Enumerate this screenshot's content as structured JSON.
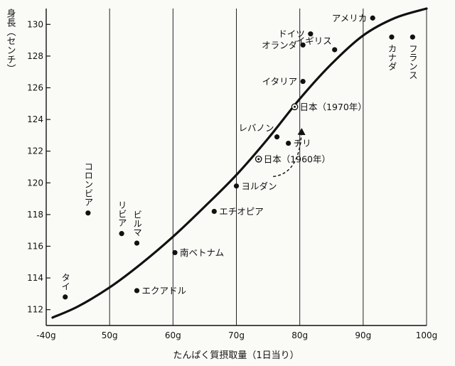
{
  "chart_data": {
    "type": "scatter",
    "xlabel": "たんぱく質摂取量（1日当り）",
    "ylabel": "身長（センチ）",
    "xlim": [
      40,
      100
    ],
    "ylim": [
      111,
      131
    ],
    "x_ticks": [
      {
        "value": 40,
        "label": "-40g"
      },
      {
        "value": 50,
        "label": "50g"
      },
      {
        "value": 60,
        "label": "60g"
      },
      {
        "value": 70,
        "label": "70g"
      },
      {
        "value": 80,
        "label": "80g"
      },
      {
        "value": 90,
        "label": "90g"
      },
      {
        "value": 100,
        "label": "100g"
      }
    ],
    "y_ticks": [
      {
        "value": 112,
        "label": "112"
      },
      {
        "value": 114,
        "label": "114"
      },
      {
        "value": 116,
        "label": "116"
      },
      {
        "value": 118,
        "label": "118"
      },
      {
        "value": 120,
        "label": "120"
      },
      {
        "value": 122,
        "label": "122"
      },
      {
        "value": 124,
        "label": "124"
      },
      {
        "value": 126,
        "label": "126"
      },
      {
        "value": 128,
        "label": "128"
      },
      {
        "value": 130,
        "label": "130"
      }
    ],
    "grid": "vertical",
    "points": [
      {
        "label": "タイ",
        "x": 43,
        "y": 112.8,
        "orient": "vertical-above",
        "marker": "dot"
      },
      {
        "label": "コロンビア",
        "x": 46.6,
        "y": 118.1,
        "orient": "vertical-above",
        "marker": "dot"
      },
      {
        "label": "リビア",
        "x": 51.9,
        "y": 116.8,
        "orient": "vertical-above",
        "marker": "dot"
      },
      {
        "label": "ビルマ",
        "x": 54.3,
        "y": 116.2,
        "orient": "vertical-above",
        "marker": "dot"
      },
      {
        "label": "エクアドル",
        "x": 54.3,
        "y": 113.2,
        "orient": "right",
        "marker": "dot"
      },
      {
        "label": "南ベトナム",
        "x": 60.3,
        "y": 115.6,
        "orient": "right",
        "marker": "dot"
      },
      {
        "label": "エチオピア",
        "x": 66.5,
        "y": 118.2,
        "orient": "right",
        "marker": "dot"
      },
      {
        "label": "ヨルダン",
        "x": 70,
        "y": 119.8,
        "orient": "right",
        "marker": "dot"
      },
      {
        "label": "日本（1960年）",
        "x": 73.5,
        "y": 121.5,
        "orient": "right",
        "marker": "circle-dot"
      },
      {
        "label": "レバノン",
        "x": 76.4,
        "y": 122.9,
        "orient": "left-above",
        "marker": "dot"
      },
      {
        "label": "チリ",
        "x": 78.2,
        "y": 122.5,
        "orient": "right",
        "marker": "dot"
      },
      {
        "label": "日本（1970年）",
        "x": 79.2,
        "y": 124.8,
        "orient": "right",
        "marker": "circle-dot"
      },
      {
        "label": "イタリア",
        "x": 80.5,
        "y": 126.4,
        "orient": "left",
        "marker": "dot"
      },
      {
        "label": "オランダ",
        "x": 80.5,
        "y": 128.7,
        "orient": "left",
        "marker": "dot"
      },
      {
        "label": "ドイツ",
        "x": 81.7,
        "y": 129.4,
        "orient": "left",
        "marker": "dot"
      },
      {
        "label": "イギリス",
        "x": 85.5,
        "y": 128.4,
        "orient": "left-above",
        "marker": "dot"
      },
      {
        "label": "アメリカ",
        "x": 91.5,
        "y": 130.4,
        "orient": "left",
        "marker": "dot"
      },
      {
        "label": "カナダ",
        "x": 94.5,
        "y": 129.2,
        "orient": "vertical-below",
        "marker": "dot"
      },
      {
        "label": "フランス",
        "x": 97.8,
        "y": 129.2,
        "orient": "vertical-below",
        "marker": "dot"
      }
    ],
    "trend_curve": {
      "x": [
        41,
        45,
        50,
        55,
        60,
        65,
        70,
        75,
        80,
        85,
        90,
        95,
        100
      ],
      "y": [
        111.5,
        112.2,
        113.4,
        114.9,
        116.6,
        118.5,
        120.5,
        122.8,
        125.3,
        127.5,
        129.3,
        130.4,
        131.0
      ]
    },
    "annotation_arrow": {
      "from": [
        75.8,
        120.4
      ],
      "to": [
        80.3,
        123.4
      ],
      "style": "dashed"
    }
  }
}
